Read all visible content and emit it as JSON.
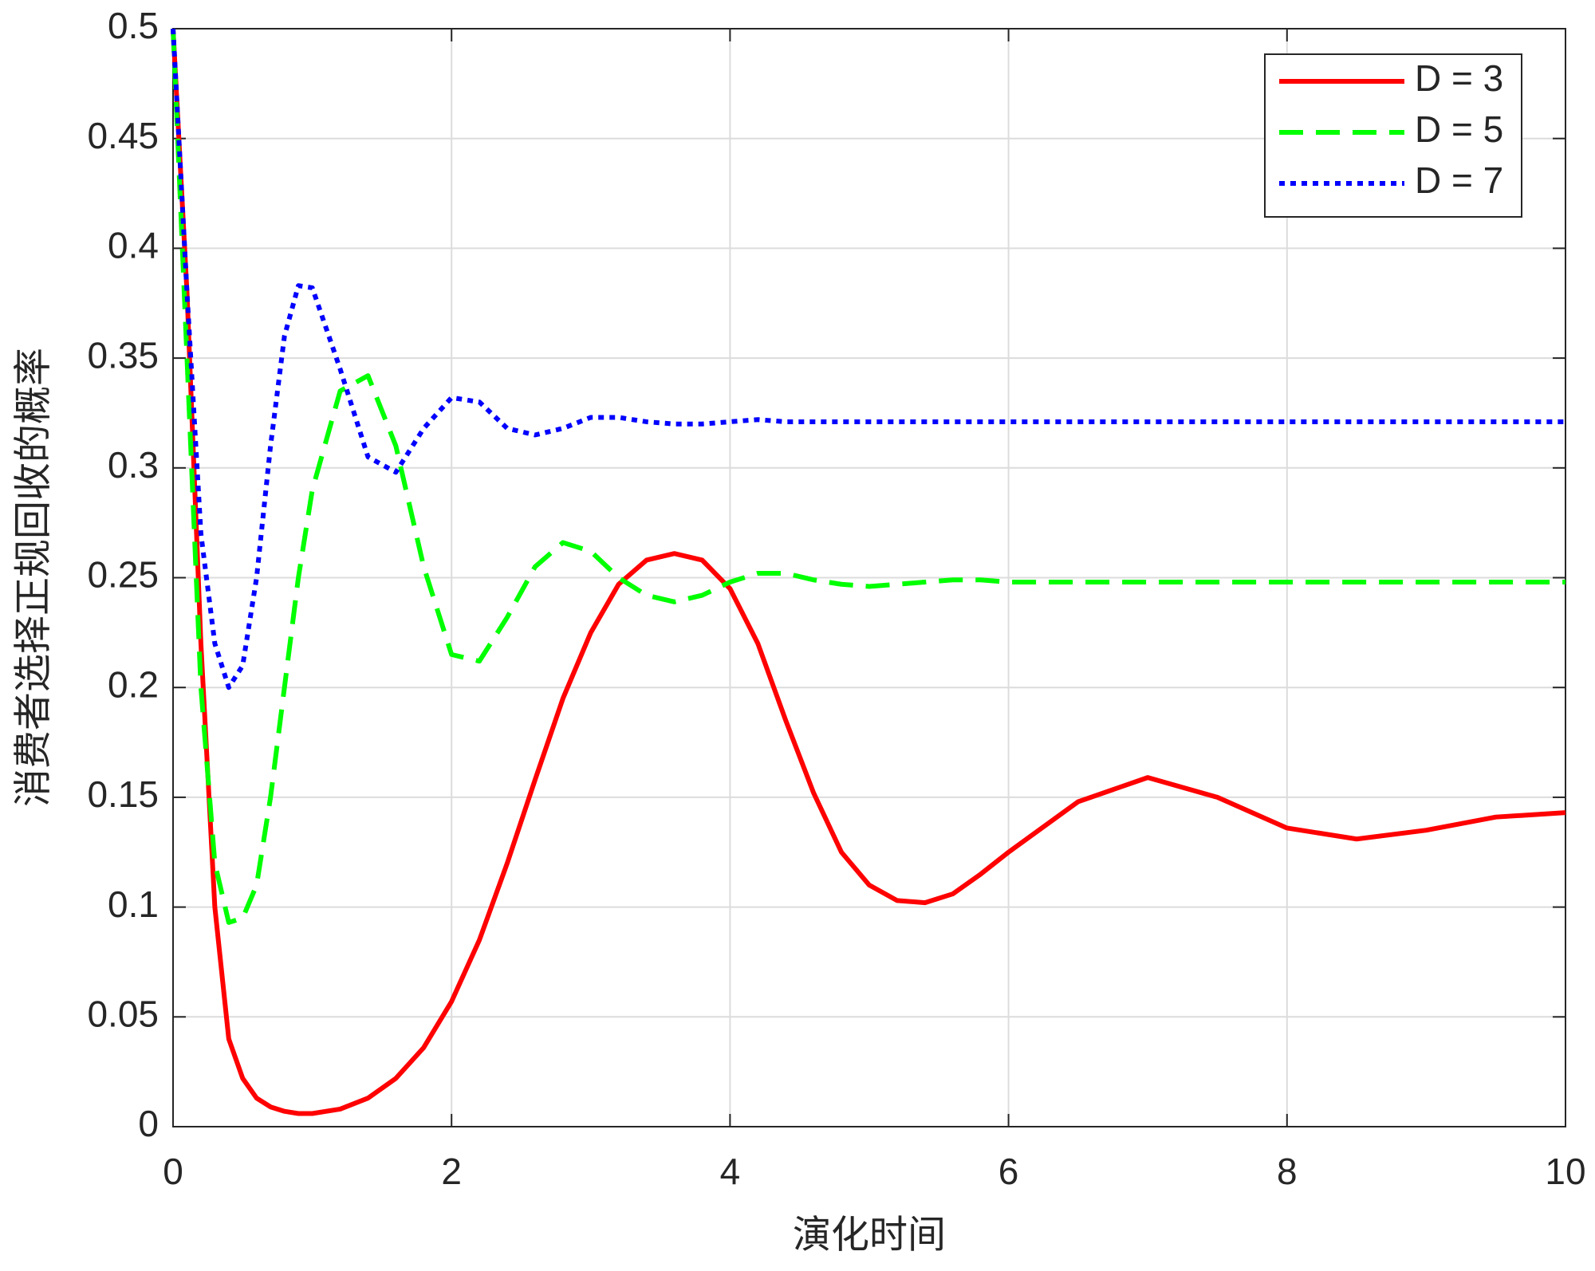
{
  "chart_data": {
    "type": "line",
    "xlabel": "演化时间",
    "ylabel": "消费者选择正规回收的概率",
    "x": [
      0,
      0.1,
      0.2,
      0.3,
      0.4,
      0.5,
      0.6,
      0.7,
      0.8,
      0.9,
      1.0,
      1.2,
      1.4,
      1.6,
      1.8,
      2.0,
      2.2,
      2.4,
      2.6,
      2.8,
      3.0,
      3.2,
      3.4,
      3.6,
      3.8,
      4.0,
      4.2,
      4.4,
      4.6,
      4.8,
      5.0,
      5.2,
      5.4,
      5.6,
      5.8,
      6.0,
      6.5,
      7.0,
      7.5,
      8.0,
      8.5,
      9.0,
      9.5,
      10
    ],
    "series": [
      {
        "name": "D = 3",
        "color": "#ff0000",
        "dash": "solid",
        "values": [
          0.5,
          0.38,
          0.22,
          0.1,
          0.04,
          0.022,
          0.013,
          0.009,
          0.007,
          0.006,
          0.006,
          0.008,
          0.013,
          0.022,
          0.036,
          0.057,
          0.085,
          0.12,
          0.158,
          0.195,
          0.225,
          0.247,
          0.258,
          0.261,
          0.258,
          0.245,
          0.22,
          0.185,
          0.152,
          0.125,
          0.11,
          0.103,
          0.102,
          0.106,
          0.115,
          0.125,
          0.148,
          0.159,
          0.15,
          0.136,
          0.131,
          0.135,
          0.141,
          0.143
        ]
      },
      {
        "name": "D = 5",
        "color": "#00ff00",
        "dash": "dashed",
        "values": [
          0.5,
          0.35,
          0.2,
          0.12,
          0.093,
          0.095,
          0.11,
          0.15,
          0.2,
          0.25,
          0.29,
          0.335,
          0.342,
          0.31,
          0.255,
          0.215,
          0.212,
          0.232,
          0.255,
          0.266,
          0.262,
          0.25,
          0.242,
          0.239,
          0.242,
          0.248,
          0.252,
          0.252,
          0.249,
          0.247,
          0.246,
          0.247,
          0.248,
          0.249,
          0.249,
          0.248,
          0.248,
          0.248,
          0.248,
          0.248,
          0.248,
          0.248,
          0.248,
          0.248
        ]
      },
      {
        "name": "D = 7",
        "color": "#0000ff",
        "dash": "dotted",
        "values": [
          0.5,
          0.38,
          0.27,
          0.22,
          0.2,
          0.21,
          0.25,
          0.31,
          0.36,
          0.383,
          0.382,
          0.345,
          0.305,
          0.298,
          0.318,
          0.332,
          0.33,
          0.318,
          0.315,
          0.318,
          0.323,
          0.323,
          0.321,
          0.32,
          0.32,
          0.321,
          0.322,
          0.321,
          0.321,
          0.321,
          0.321,
          0.321,
          0.321,
          0.321,
          0.321,
          0.321,
          0.321,
          0.321,
          0.321,
          0.321,
          0.321,
          0.321,
          0.321,
          0.321
        ]
      }
    ],
    "xlim": [
      0,
      10
    ],
    "xticks": [
      0,
      2,
      4,
      6,
      8,
      10
    ],
    "ylim": [
      0,
      0.5
    ],
    "yticks": [
      0,
      0.05,
      0.1,
      0.15,
      0.2,
      0.25,
      0.3,
      0.35,
      0.4,
      0.45,
      0.5
    ],
    "grid": true,
    "legend": "top-right"
  }
}
